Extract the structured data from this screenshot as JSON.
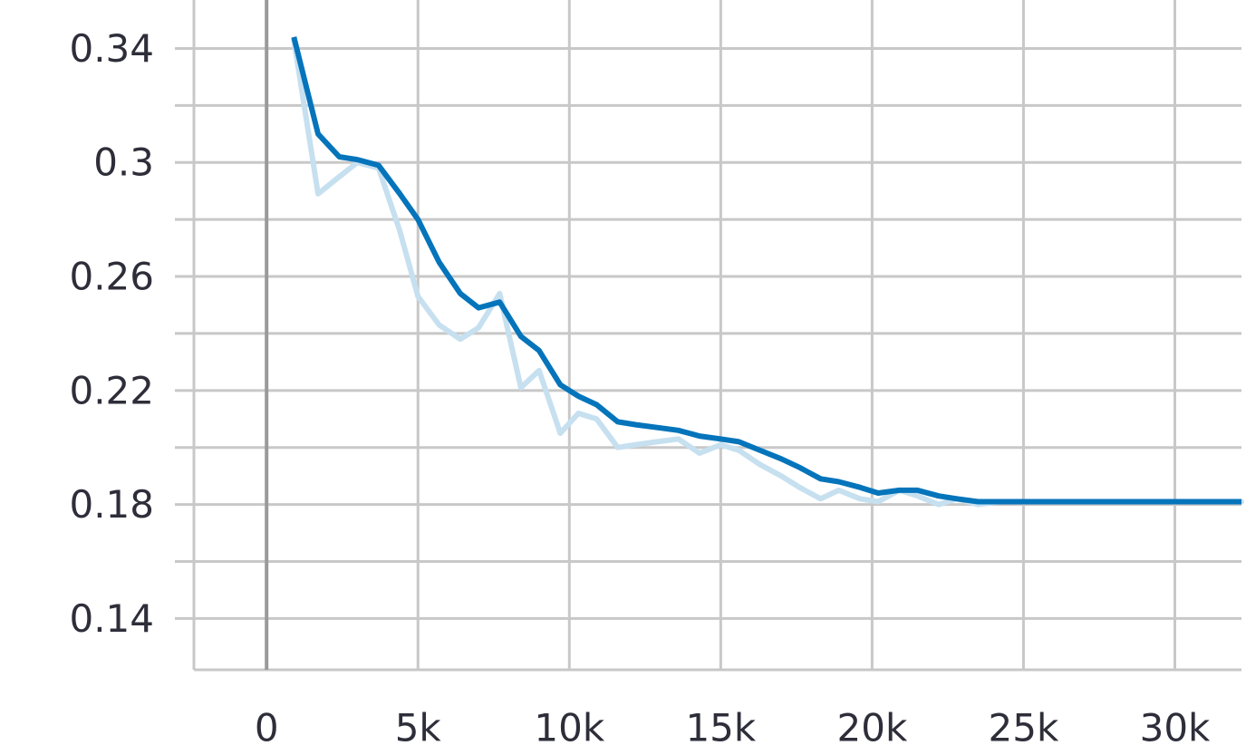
{
  "chart_data": {
    "type": "line",
    "title": "",
    "xlabel": "",
    "ylabel": "",
    "xlim": [
      -2400,
      32200
    ],
    "ylim": [
      0.122,
      0.357
    ],
    "grid": true,
    "legend": "none",
    "x_ticks": [
      {
        "value": 0,
        "label": "0"
      },
      {
        "value": 5000,
        "label": "5k"
      },
      {
        "value": 10000,
        "label": "10k"
      },
      {
        "value": 15000,
        "label": "15k"
      },
      {
        "value": 20000,
        "label": "20k"
      },
      {
        "value": 25000,
        "label": "25k"
      },
      {
        "value": 30000,
        "label": "30k"
      }
    ],
    "y_ticks": [
      {
        "value": 0.34,
        "label": "0.34"
      },
      {
        "value": 0.3,
        "label": "0.3"
      },
      {
        "value": 0.26,
        "label": "0.26"
      },
      {
        "value": 0.22,
        "label": "0.22"
      },
      {
        "value": 0.18,
        "label": "0.18"
      },
      {
        "value": 0.14,
        "label": "0.14"
      }
    ],
    "y_minor_grid": [
      0.32,
      0.28,
      0.24,
      0.2,
      0.16
    ],
    "series": [
      {
        "style": "raw",
        "color": "#c6e0f0",
        "x": [
          900,
          1700,
          2400,
          3000,
          3700,
          4400,
          5000,
          5700,
          6400,
          7000,
          7700,
          8400,
          9000,
          9700,
          10300,
          10900,
          11600,
          12200,
          12900,
          13600,
          14300,
          15000,
          15600,
          16300,
          17000,
          17600,
          18300,
          18900,
          19600,
          20200,
          20900,
          21500,
          22200,
          22800,
          23500,
          24200,
          25000,
          26000,
          27000,
          28000,
          29000,
          30000,
          31000,
          32200
        ],
        "values": [
          0.343,
          0.289,
          0.295,
          0.3,
          0.298,
          0.276,
          0.253,
          0.243,
          0.238,
          0.242,
          0.254,
          0.221,
          0.227,
          0.205,
          0.212,
          0.21,
          0.2,
          0.201,
          0.202,
          0.203,
          0.198,
          0.201,
          0.199,
          0.194,
          0.19,
          0.186,
          0.182,
          0.185,
          0.182,
          0.181,
          0.185,
          0.183,
          0.18,
          0.182,
          0.18,
          0.181,
          0.181,
          0.181,
          0.181,
          0.181,
          0.181,
          0.181,
          0.181,
          0.181
        ]
      },
      {
        "style": "smoothed",
        "color": "#0474bb",
        "x": [
          900,
          1700,
          2400,
          3000,
          3700,
          4400,
          5000,
          5700,
          6400,
          7000,
          7700,
          8400,
          9000,
          9700,
          10300,
          10900,
          11600,
          12200,
          12900,
          13600,
          14300,
          15000,
          15600,
          16300,
          17000,
          17600,
          18300,
          18900,
          19600,
          20200,
          20900,
          21500,
          22200,
          22800,
          23500,
          24200,
          25000,
          26000,
          27000,
          28000,
          29000,
          30000,
          31000,
          32200
        ],
        "values": [
          0.344,
          0.31,
          0.302,
          0.301,
          0.299,
          0.289,
          0.28,
          0.265,
          0.254,
          0.249,
          0.251,
          0.239,
          0.234,
          0.222,
          0.218,
          0.215,
          0.209,
          0.208,
          0.207,
          0.206,
          0.204,
          0.203,
          0.202,
          0.199,
          0.196,
          0.193,
          0.189,
          0.188,
          0.186,
          0.184,
          0.185,
          0.185,
          0.183,
          0.182,
          0.181,
          0.181,
          0.181,
          0.181,
          0.181,
          0.181,
          0.181,
          0.181,
          0.181,
          0.181
        ]
      }
    ]
  }
}
